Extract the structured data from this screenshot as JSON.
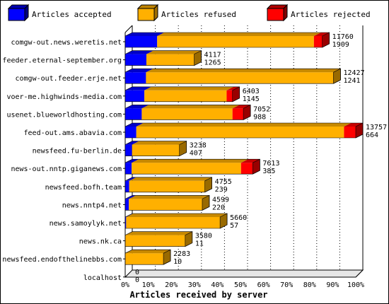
{
  "chart_data": {
    "type": "bar",
    "orientation": "horizontal",
    "stacked": true,
    "style": "3d",
    "xlabel": "Articles received by server",
    "x_ticks": [
      "0%",
      "10%",
      "20%",
      "30%",
      "40%",
      "50%",
      "60%",
      "70%",
      "80%",
      "90%",
      "100%"
    ],
    "xlim": [
      0,
      13757
    ],
    "legend": [
      {
        "label": "Articles accepted",
        "color": "#0000ff"
      },
      {
        "label": "Articles refused",
        "color": "#ffb000"
      },
      {
        "label": "Articles rejected",
        "color": "#ff0000"
      }
    ],
    "legend_position": "top",
    "grid": true,
    "categories": [
      "comgw-out.news.weretis.net",
      "feeder.eternal-september.org",
      "comgw-out.feeder.erje.net",
      "voer-me.highwinds-media.com",
      "usenet.blueworldhosting.com",
      "feed-out.ams.abavia.com",
      "newsfeed.fu-berlin.de",
      "news-out.nntp.giganews.com",
      "newsfeed.bofh.team",
      "news.nntp4.net",
      "news.samoylyk.net",
      "news.nk.ca",
      "newsfeed.endofthelinebbs.com",
      "localhost"
    ],
    "totals": [
      11760,
      4117,
      12427,
      6403,
      7052,
      13757,
      3238,
      7613,
      4755,
      4599,
      5660,
      3580,
      2283,
      0
    ],
    "accepted": [
      1909,
      1265,
      1241,
      1145,
      988,
      664,
      407,
      385,
      239,
      220,
      57,
      11,
      10,
      0
    ],
    "rejected": [
      500,
      0,
      0,
      350,
      650,
      700,
      0,
      700,
      0,
      0,
      0,
      0,
      0,
      0
    ],
    "colors": {
      "accepted": "#0000ff",
      "refused": "#ffb000",
      "rejected": "#ff0000"
    }
  }
}
